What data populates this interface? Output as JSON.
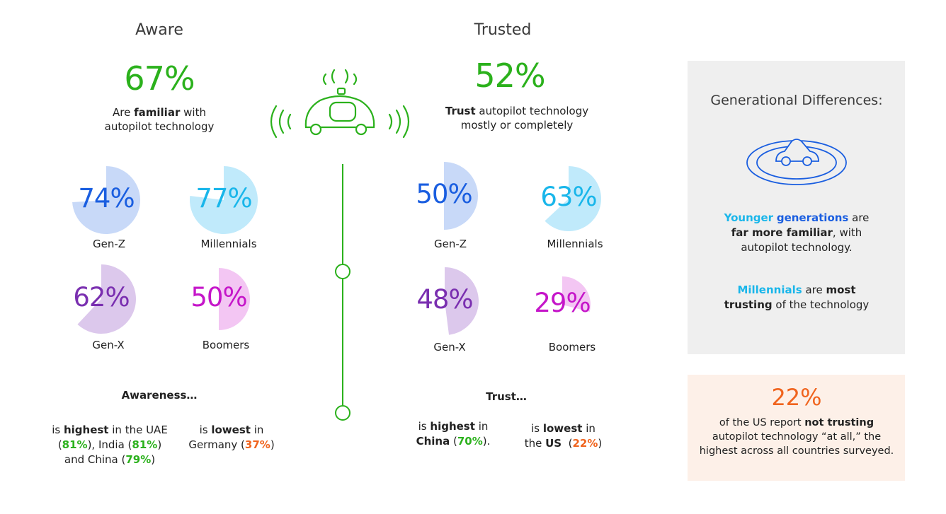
{
  "aware": {
    "title": "Aware",
    "percent": "67%",
    "desc_bold": "familiar",
    "desc_pre": "Are",
    "desc_post": "with",
    "desc_line2": "autopilot technology"
  },
  "trusted": {
    "title": "Trusted",
    "percent": "52%",
    "desc_bold": "Trust",
    "desc_post": "autopilot technology",
    "desc_line2": "mostly or completely"
  },
  "chart_data": [
    {
      "type": "pie",
      "group": "Aware",
      "categories": [
        "Gen-Z",
        "Millennials",
        "Gen-X",
        "Boomers"
      ],
      "values": [
        74,
        77,
        62,
        50
      ],
      "labels": [
        "74%",
        "77%",
        "62%",
        "50%"
      ],
      "colors": [
        "#1a5ee0",
        "#19b6ea",
        "#7a2fb0",
        "#c516c9"
      ],
      "fill_colors": [
        "#c8d9f8",
        "#c0eafb",
        "#dcc8ec",
        "#f3c6f3"
      ]
    },
    {
      "type": "pie",
      "group": "Trusted",
      "categories": [
        "Gen-Z",
        "Millennials",
        "Gen-X",
        "Boomers"
      ],
      "values": [
        50,
        63,
        48,
        29
      ],
      "labels": [
        "50%",
        "63%",
        "48%",
        "29%"
      ],
      "colors": [
        "#1a5ee0",
        "#19b6ea",
        "#7a2fb0",
        "#c516c9"
      ],
      "fill_colors": [
        "#c8d9f8",
        "#c0eafb",
        "#dcc8ec",
        "#f3c6f3"
      ]
    }
  ],
  "awareness": {
    "heading": "Awareness…",
    "left_is": "is",
    "left_bold": "highest",
    "left_rest": "in the UAE",
    "left_v1": "81%",
    "left_india": "), India (",
    "left_v2": "81%",
    "left_and": "and China (",
    "left_v3": "79%",
    "right_is": "is",
    "right_bold": "lowest",
    "right_in": "in",
    "right_country": "Germany (",
    "right_v": "37%"
  },
  "trust": {
    "heading": "Trust…",
    "left_is": "is",
    "left_bold": "highest",
    "left_in": "in",
    "left_country": "China",
    "left_v": "70%",
    "right_is": "is",
    "right_bold": "lowest",
    "right_in": "in",
    "right_pre": "the",
    "right_country": "US",
    "right_v": "22%"
  },
  "generational": {
    "title": "Generational Differences:",
    "p1_a": "Younger",
    "p1_b": "generations",
    "p1_c": "are",
    "p1_d": "far more familiar",
    "p1_e": ", with",
    "p1_f": "autopilot technology.",
    "p2_a": "Millennials",
    "p2_b": "are",
    "p2_c": "most",
    "p2_d": "trusting",
    "p2_e": "of the technology"
  },
  "us_stat": {
    "percent": "22%",
    "line1_pre": "of the US report",
    "line1_bold": "not trusting",
    "line2": "autopilot technology “at all,” the",
    "line3": "highest across all countries surveyed."
  },
  "colors": {
    "green": "#2bb11c",
    "orange": "#f0641e",
    "cyan": "#19b6ea",
    "blue": "#1a5ee0",
    "purple": "#7a2fb0",
    "magenta": "#c516c9"
  },
  "icons": [
    "autonomous-car-icon",
    "car-radar-icon",
    "timeline-node-icon"
  ]
}
